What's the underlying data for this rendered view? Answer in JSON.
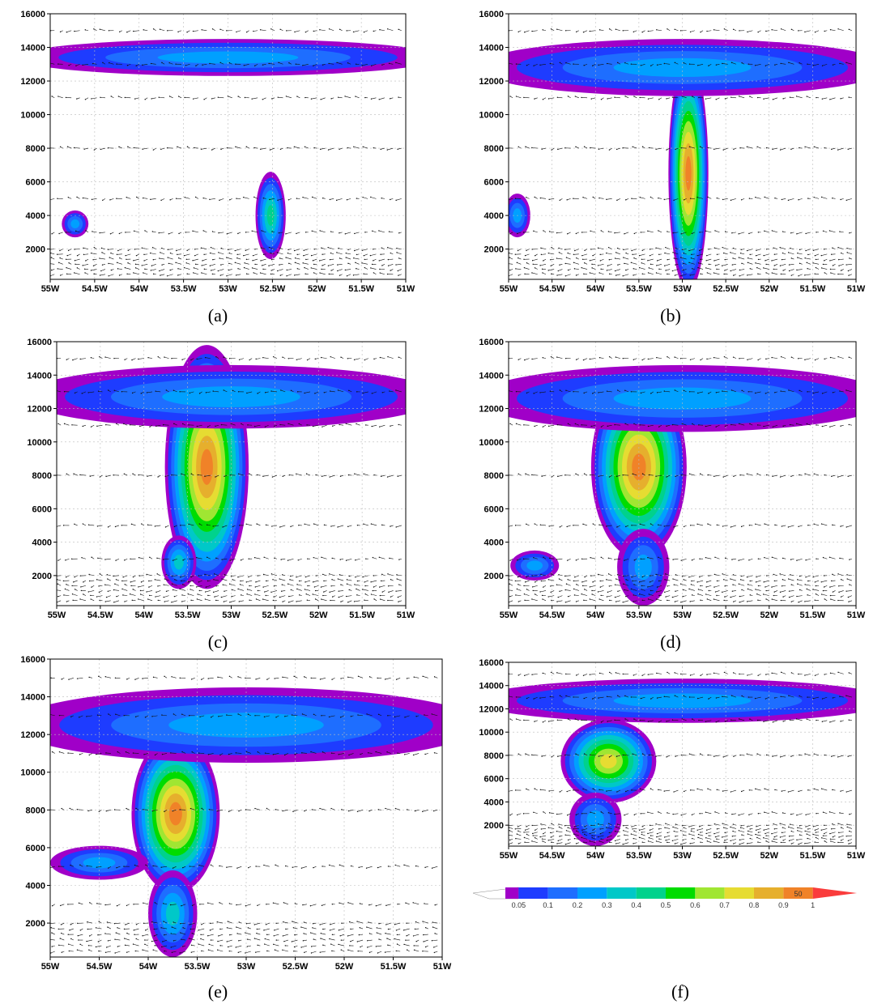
{
  "colorbar": {
    "levels": [
      "0.05",
      "0.1",
      "0.2",
      "0.3",
      "0.4",
      "0.5",
      "0.6",
      "0.7",
      "0.8",
      "0.9",
      "1"
    ],
    "colors": [
      "#a000c8",
      "#1e3cff",
      "#1e6eff",
      "#00a0ff",
      "#00c8c8",
      "#00d28c",
      "#00dc00",
      "#a0e632",
      "#e6dc32",
      "#e6af2d",
      "#f08228",
      "#fa3c3c"
    ],
    "arrow_label": "50"
  },
  "chart_data": [
    {
      "type": "heatmap",
      "label": "(a)",
      "x_ticks": [
        "55W",
        "54.5W",
        "54W",
        "53.5W",
        "53W",
        "52.5W",
        "52W",
        "51.5W",
        "51W"
      ],
      "y_ticks": [
        "2000",
        "4000",
        "6000",
        "8000",
        "10000",
        "12000",
        "14000",
        "16000"
      ],
      "xlim": [
        -55,
        -51
      ],
      "ylim": [
        200,
        16000
      ],
      "grid": true,
      "cells": [
        {
          "x": -54.72,
          "y": 3500,
          "rx": 0.15,
          "ry": 800,
          "max": 0.3
        },
        {
          "x": -52.52,
          "y": 4000,
          "rx": 0.17,
          "ry": 2600,
          "max": 0.5
        },
        {
          "x": -53.0,
          "y": 13400,
          "rx": 2.4,
          "ry": 1100,
          "max": 0.3
        }
      ]
    },
    {
      "type": "heatmap",
      "label": "(b)",
      "x_ticks": [
        "55W",
        "54.5W",
        "54W",
        "53.5W",
        "53W",
        "52.5W",
        "52W",
        "51.5W",
        "51W"
      ],
      "y_ticks": [
        "2000",
        "4000",
        "6000",
        "8000",
        "10000",
        "12000",
        "14000",
        "16000"
      ],
      "xlim": [
        -55,
        -51
      ],
      "ylim": [
        200,
        16000
      ],
      "grid": true,
      "cells": [
        {
          "x": -52.93,
          "y": 6500,
          "rx": 0.23,
          "ry": 7000,
          "max": 1.0
        },
        {
          "x": -54.9,
          "y": 4000,
          "rx": 0.15,
          "ry": 1300,
          "max": 0.3
        },
        {
          "x": -53.0,
          "y": 12800,
          "rx": 2.4,
          "ry": 1700,
          "max": 0.3
        }
      ]
    },
    {
      "type": "heatmap",
      "label": "(c)",
      "x_ticks": [
        "55W",
        "54.5W",
        "54W",
        "53.5W",
        "53W",
        "52.5W",
        "52W",
        "51.5W",
        "51W"
      ],
      "y_ticks": [
        "2000",
        "4000",
        "6000",
        "8000",
        "10000",
        "12000",
        "14000",
        "16000"
      ],
      "xlim": [
        -55,
        -51
      ],
      "ylim": [
        200,
        16000
      ],
      "grid": true,
      "cells": [
        {
          "x": -53.28,
          "y": 8500,
          "rx": 0.48,
          "ry": 7300,
          "max": 1.0
        },
        {
          "x": -53.6,
          "y": 2800,
          "rx": 0.2,
          "ry": 1600,
          "max": 0.4
        },
        {
          "x": -53.0,
          "y": 12700,
          "rx": 2.4,
          "ry": 1900,
          "max": 0.3
        }
      ]
    },
    {
      "type": "heatmap",
      "label": "(d)",
      "x_ticks": [
        "55W",
        "54.5W",
        "54W",
        "53.5W",
        "53W",
        "52.5W",
        "52W",
        "51.5W",
        "51W"
      ],
      "y_ticks": [
        "2000",
        "4000",
        "6000",
        "8000",
        "10000",
        "12000",
        "14000",
        "16000"
      ],
      "xlim": [
        -55,
        -51
      ],
      "ylim": [
        200,
        16000
      ],
      "grid": true,
      "cells": [
        {
          "x": -53.5,
          "y": 8500,
          "rx": 0.55,
          "ry": 5500,
          "max": 1.0
        },
        {
          "x": -53.45,
          "y": 2500,
          "rx": 0.3,
          "ry": 2300,
          "max": 0.3
        },
        {
          "x": -54.7,
          "y": 2600,
          "rx": 0.28,
          "ry": 900,
          "max": 0.3
        },
        {
          "x": -53.0,
          "y": 12600,
          "rx": 2.4,
          "ry": 2000,
          "max": 0.3
        }
      ]
    },
    {
      "type": "heatmap",
      "label": "(e)",
      "x_ticks": [
        "55W",
        "54.5W",
        "54W",
        "53.5W",
        "53W",
        "52.5W",
        "52W",
        "51.5W",
        "51W"
      ],
      "y_ticks": [
        "2000",
        "4000",
        "6000",
        "8000",
        "10000",
        "12000",
        "14000",
        "16000"
      ],
      "xlim": [
        -55,
        -51
      ],
      "ylim": [
        200,
        16000
      ],
      "grid": true,
      "cells": [
        {
          "x": -53.72,
          "y": 7800,
          "rx": 0.45,
          "ry": 4200,
          "max": 1.0
        },
        {
          "x": -53.75,
          "y": 2500,
          "rx": 0.25,
          "ry": 2300,
          "max": 0.4
        },
        {
          "x": -54.5,
          "y": 5200,
          "rx": 0.5,
          "ry": 900,
          "max": 0.3
        },
        {
          "x": -53.0,
          "y": 12500,
          "rx": 2.4,
          "ry": 2000,
          "max": 0.3
        }
      ]
    },
    {
      "type": "heatmap",
      "label": "(f)",
      "x_ticks": [
        "55W",
        "54.5W",
        "54W",
        "53.5W",
        "53W",
        "52.5W",
        "52W",
        "51.5W",
        "51W"
      ],
      "y_ticks": [
        "2000",
        "4000",
        "6000",
        "8000",
        "10000",
        "12000",
        "14000",
        "16000"
      ],
      "xlim": [
        -55,
        -51
      ],
      "ylim": [
        200,
        16000
      ],
      "grid": true,
      "cells": [
        {
          "x": -53.85,
          "y": 7500,
          "rx": 0.55,
          "ry": 3600,
          "max": 0.8
        },
        {
          "x": -54.0,
          "y": 2500,
          "rx": 0.3,
          "ry": 2300,
          "max": 0.3
        },
        {
          "x": -53.0,
          "y": 12700,
          "rx": 2.4,
          "ry": 1900,
          "max": 0.3
        }
      ]
    }
  ]
}
